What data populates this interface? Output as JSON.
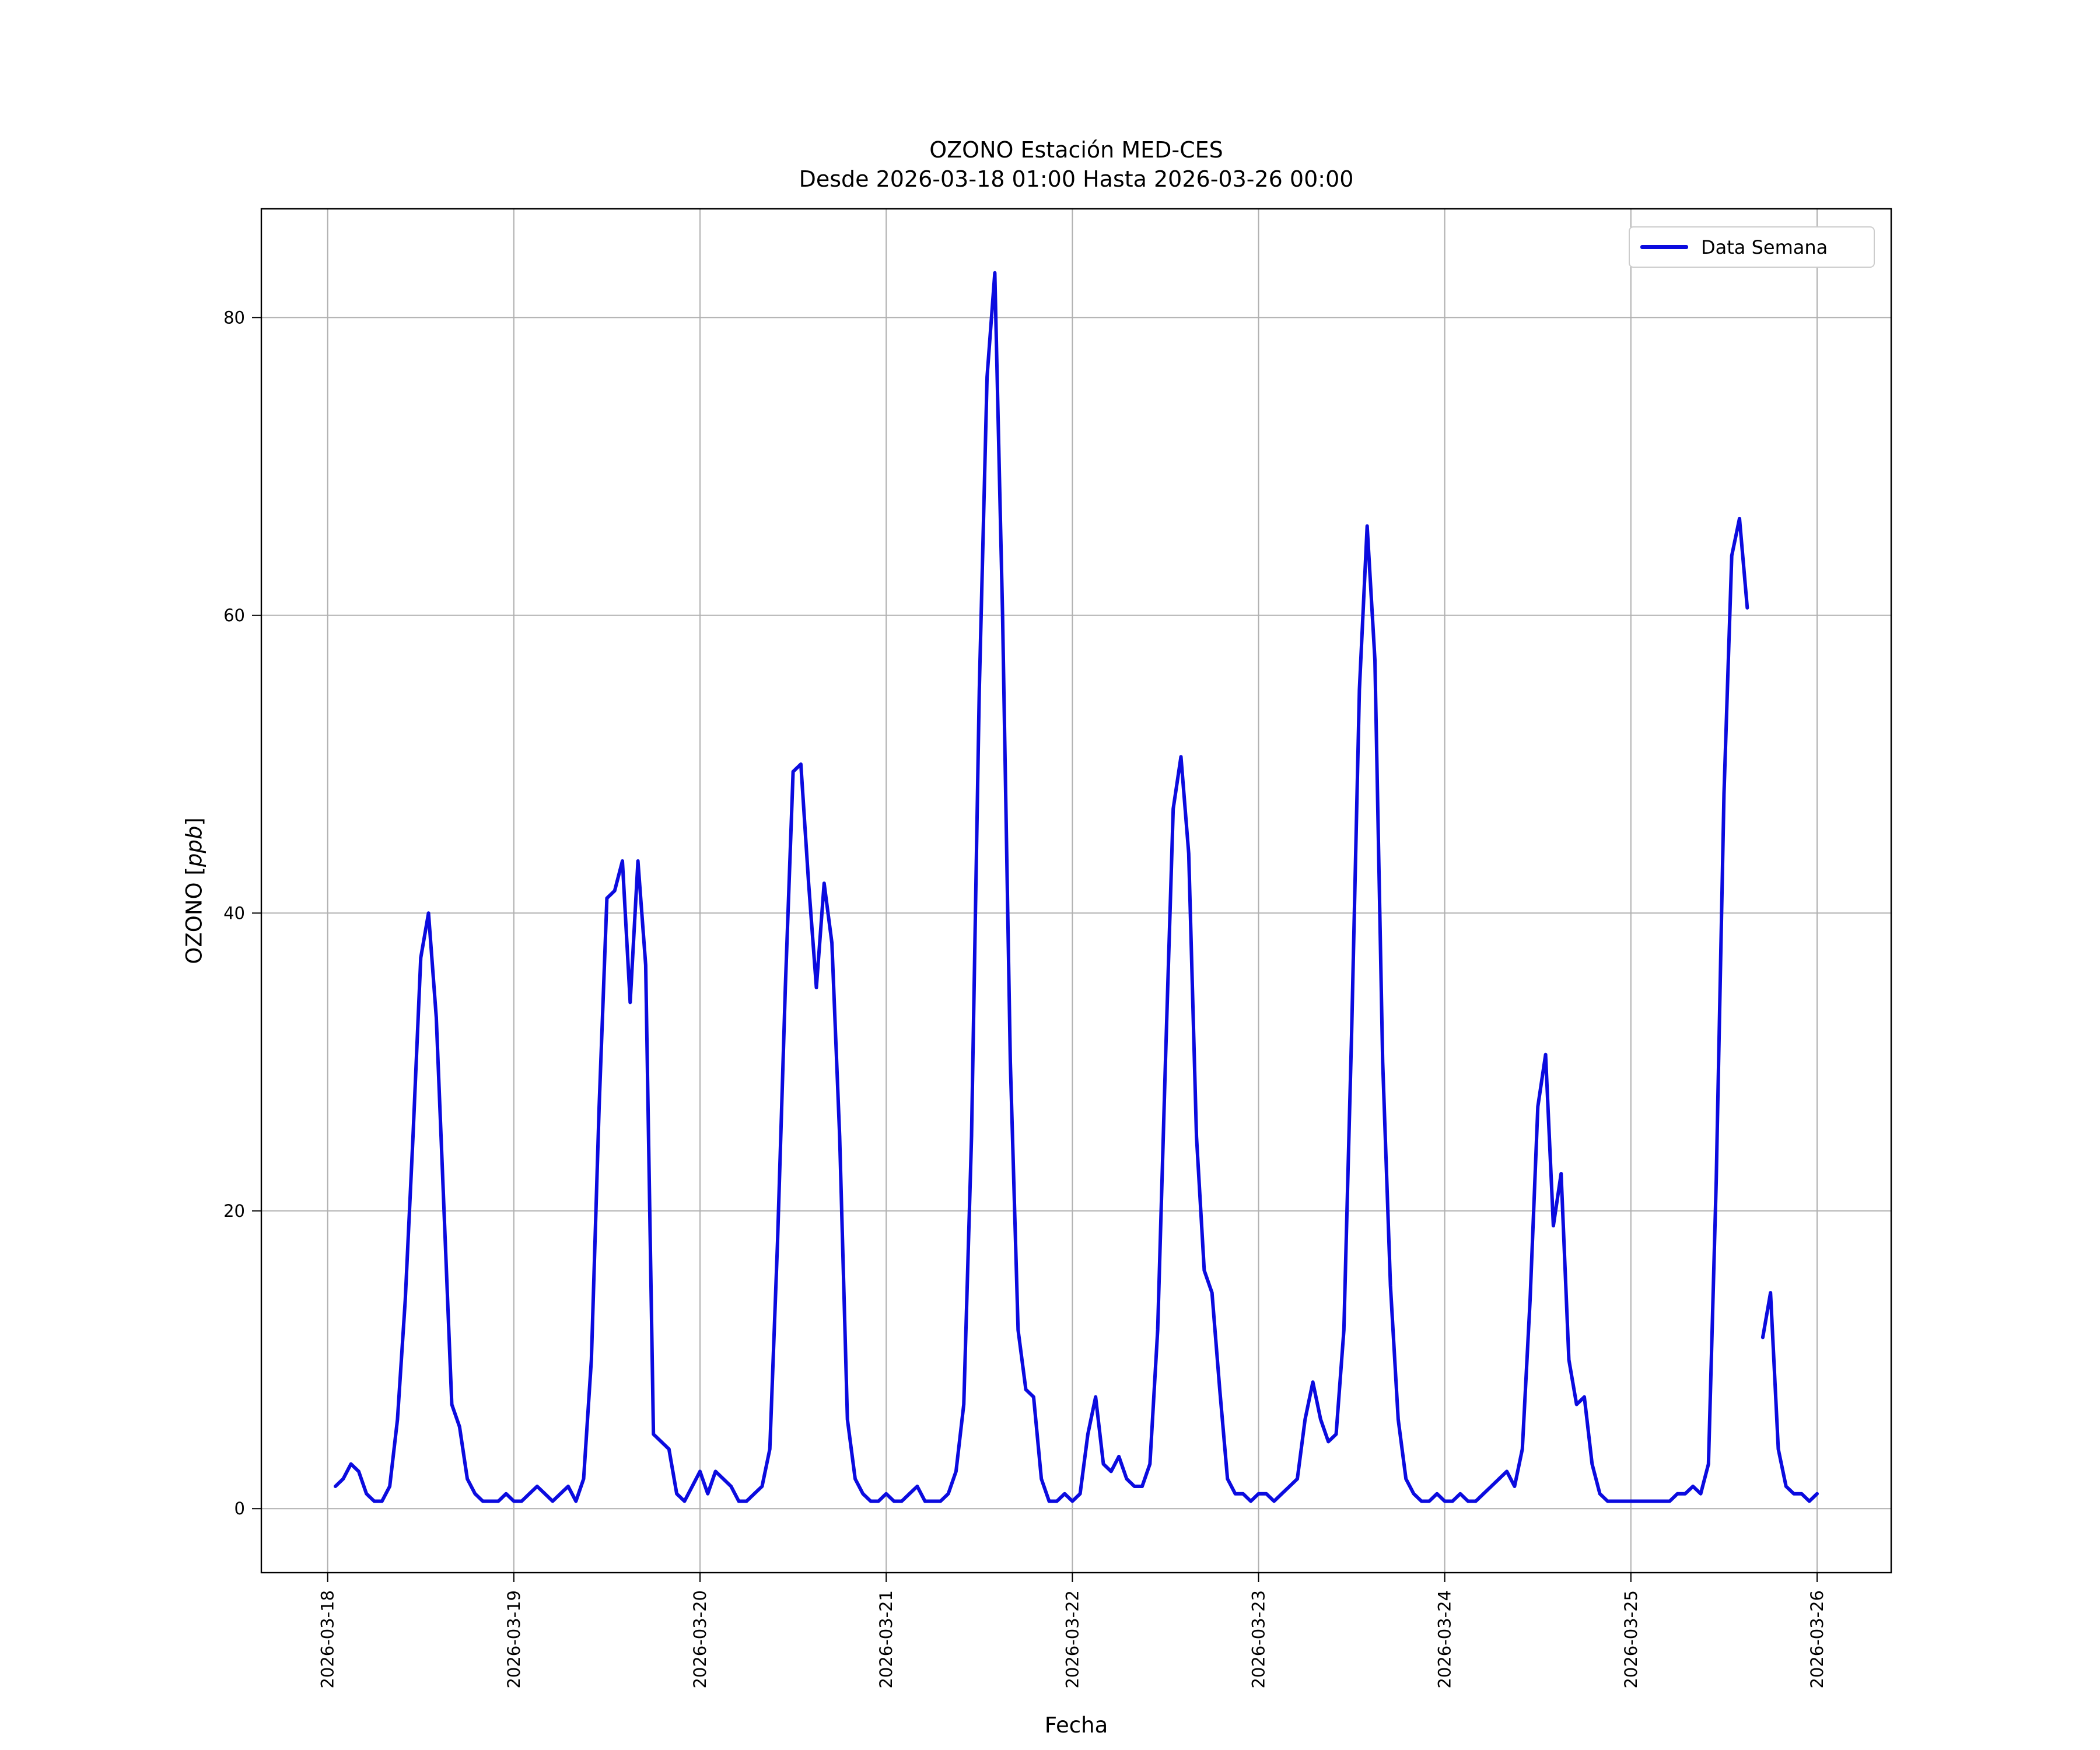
{
  "figure": {
    "ylabel_prefix": "OZONO [",
    "ylabel_italic": "ppb",
    "ylabel_suffix": "]"
  },
  "chart_data": {
    "type": "line",
    "title": "OZONO Estación MED-CES",
    "subtitle": "Desde 2026-03-18 01:00 Hasta 2026-03-26 00:00",
    "xlabel": "Fecha",
    "ylabel": "OZONO [ppb]",
    "grid": true,
    "legend_position": "upper right",
    "line_color": "#0b0bdf",
    "grid_color": "#b0b0b0",
    "ylim": [
      -4.3,
      87.3
    ],
    "yticks": [
      0,
      20,
      40,
      60,
      80
    ],
    "xtick_labels": [
      "2026-03-18",
      "2026-03-19",
      "2026-03-20",
      "2026-03-21",
      "2026-03-22",
      "2026-03-23",
      "2026-03-24",
      "2026-03-25",
      "2026-03-26"
    ],
    "x_start": "2026-03-18 01:00",
    "x_end": "2026-03-26 00:00",
    "interval_hours": 1,
    "series": [
      {
        "name": "Data Semana",
        "values": [
          1.5,
          2,
          3,
          2.5,
          1,
          0.5,
          0.5,
          1.5,
          6,
          14,
          25,
          37,
          40,
          33,
          20,
          7,
          5.5,
          2,
          1,
          0.5,
          0.5,
          0.5,
          1,
          0.5,
          0.5,
          1,
          1.5,
          1,
          0.5,
          1,
          1.5,
          0.5,
          2,
          10,
          27,
          41,
          41.5,
          43.5,
          34,
          43.5,
          36.5,
          5,
          4.5,
          4,
          1,
          0.5,
          1.5,
          2.5,
          1,
          2.5,
          2,
          1.5,
          0.5,
          0.5,
          1,
          1.5,
          4,
          18,
          35,
          49.5,
          50,
          42,
          35,
          42,
          38,
          25,
          6,
          2,
          1,
          0.5,
          0.5,
          1,
          0.5,
          0.5,
          1,
          1.5,
          0.5,
          0.5,
          0.5,
          1,
          2.5,
          7,
          25,
          55,
          76,
          83,
          60,
          30,
          12,
          8,
          7.5,
          2,
          0.5,
          0.5,
          1,
          0.5,
          1,
          5,
          7.5,
          3,
          2.5,
          3.5,
          2,
          1.5,
          1.5,
          3,
          12,
          30,
          47,
          50.5,
          44,
          25,
          16,
          14.5,
          8,
          2,
          1,
          1,
          0.5,
          1,
          1,
          0.5,
          1,
          1.5,
          2,
          6,
          8.5,
          6,
          4.5,
          5,
          12,
          32,
          55,
          66,
          57,
          30,
          15,
          6,
          2,
          1,
          0.5,
          0.5,
          1,
          0.5,
          0.5,
          1,
          0.5,
          0.5,
          1,
          1.5,
          2,
          2.5,
          1.5,
          4,
          14,
          27,
          30.5,
          19,
          22.5,
          10,
          7,
          7.5,
          3,
          1,
          0.5,
          0.5,
          0.5,
          0.5,
          0.5,
          0.5,
          0.5,
          0.5,
          0.5,
          1,
          1,
          1.5,
          1,
          3,
          22,
          48,
          64,
          66.5,
          60.5,
          null,
          11.5,
          14.5,
          4,
          1.5,
          1,
          1,
          0.5,
          1
        ]
      }
    ]
  }
}
